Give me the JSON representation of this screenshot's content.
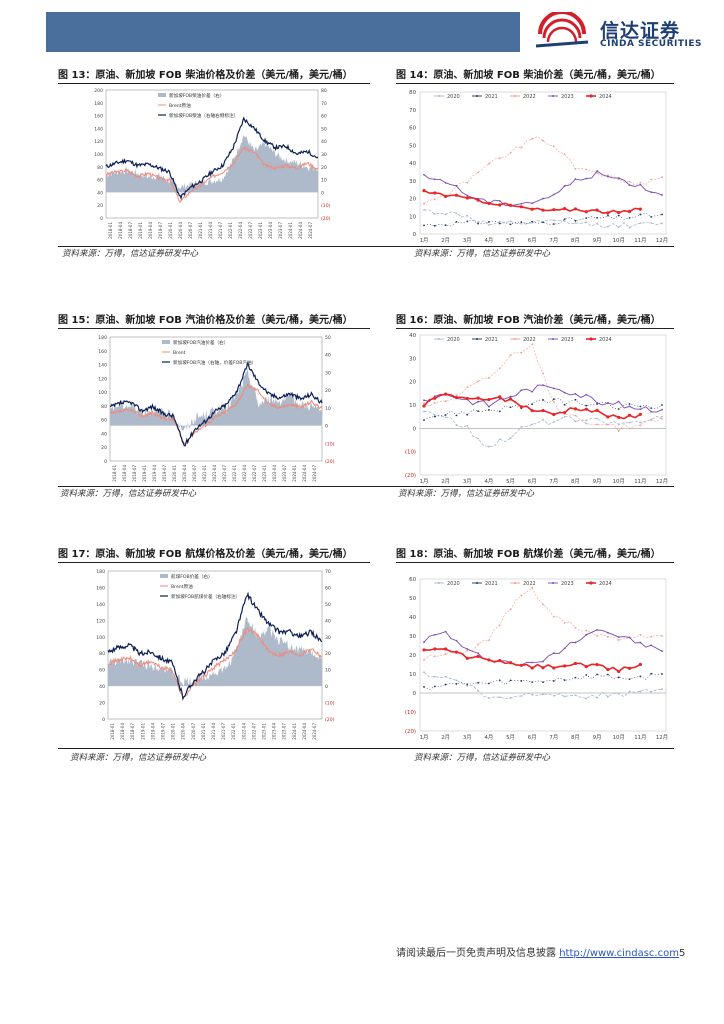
{
  "header": {
    "logo_cn": "信达证券",
    "logo_en": "CINDA SECURITIES"
  },
  "colors": {
    "banner": "#4a6f9c",
    "navy": "#0d1f55",
    "salmon": "#f08a7a",
    "gray_area": "#aeb9c9",
    "c2020": "#a8b8d0",
    "c2021": "#1f3560",
    "c2022": "#f59a8c",
    "c2023": "#7b4bb0",
    "c2024": "#e8262a"
  },
  "figures": [
    {
      "title": "图 13：原油、新加坡 FOB 柴油价格及价差（美元/桶，美元/桶）",
      "source": "资料来源：万得，信达证券研发中心",
      "chart_data": {
        "type": "line",
        "legend": [
          "新加坡FOB柴油价差（右）",
          "Brent原油",
          "新加坡FOB柴油（右轴右侧标注）"
        ],
        "y_left_ticks": [
          "200",
          "180",
          "160",
          "140",
          "120",
          "100",
          "80",
          "60",
          "40",
          "20",
          "0"
        ],
        "y_right_ticks": [
          "80",
          "70",
          "60",
          "50",
          "40",
          "30",
          "20",
          "10",
          "0",
          "(10)",
          "(20)"
        ],
        "x_ticks": [
          "2018-01",
          "2018-04",
          "2018-07",
          "2019-01",
          "2019-04",
          "2019-07",
          "2020-01",
          "2020-04",
          "2020-07",
          "2021-01",
          "2021-04",
          "2021-07",
          "2022-01",
          "2022-04",
          "2022-07",
          "2023-01",
          "2023-04",
          "2023-07",
          "2024-01",
          "2024-04",
          "2024-07"
        ],
        "ylim_left": [
          0,
          200
        ],
        "ylim_right": [
          -20,
          80
        ],
        "series": [
          {
            "name": "柴油价差",
            "values": [
              14,
              16,
              17,
              15,
              12,
              13,
              9,
              4,
              6,
              8,
              9,
              11,
              25,
              45,
              32,
              38,
              30,
              25,
              23,
              20,
              19
            ]
          },
          {
            "name": "Brent",
            "values": [
              68,
              72,
              74,
              65,
              70,
              62,
              60,
              25,
              42,
              52,
              64,
              72,
              85,
              110,
              102,
              82,
              78,
              82,
              78,
              86,
              76
            ]
          },
          {
            "name": "新加坡柴油",
            "values": [
              80,
              86,
              90,
              82,
              84,
              78,
              72,
              32,
              48,
              58,
              72,
              82,
              110,
              155,
              140,
              120,
              110,
              112,
              100,
              104,
              94
            ]
          }
        ]
      }
    },
    {
      "title": "图 14：原油、新加坡 FOB 柴油价差（美元/桶，美元/桶）",
      "source": "资料来源：万得，信达证券研发中心",
      "chart_data": {
        "type": "line",
        "categories": [
          "1月",
          "2月",
          "3月",
          "4月",
          "5月",
          "6月",
          "7月",
          "8月",
          "9月",
          "10月",
          "11月",
          "12月"
        ],
        "y_ticks": [
          "80",
          "70",
          "60",
          "50",
          "40",
          "30",
          "20",
          "10",
          "0"
        ],
        "ylim": [
          0,
          80
        ],
        "series": [
          {
            "name": "2020",
            "values": [
              13,
              12,
              10,
              5,
              6,
              6,
              7,
              6,
              5,
              5,
              5,
              6
            ]
          },
          {
            "name": "2021",
            "values": [
              5,
              6,
              6,
              7,
              6,
              6,
              7,
              8,
              9,
              9,
              10,
              11
            ]
          },
          {
            "name": "2022",
            "values": [
              18,
              22,
              30,
              40,
              45,
              55,
              50,
              38,
              35,
              30,
              28,
              32
            ]
          },
          {
            "name": "2023",
            "values": [
              32,
              30,
              22,
              18,
              17,
              18,
              22,
              30,
              34,
              31,
              27,
              22
            ]
          },
          {
            "name": "2024",
            "values": [
              24,
              22,
              20,
              18,
              16,
              14,
              13,
              14,
              13,
              12,
              14,
              null
            ]
          }
        ]
      }
    },
    {
      "title": "图 15：原油、新加坡 FOB 汽油价格及价差（美元/桶，美元/桶）",
      "source": "资料来源：万得，信达证券研发中心",
      "chart_data": {
        "type": "line",
        "legend": [
          "新加坡FOB汽油价差（右）",
          "Brent",
          "新加坡FOB汽油（右轴，价差FOB汽油）"
        ],
        "y_left_ticks": [
          "180",
          "160",
          "140",
          "120",
          "100",
          "80",
          "60",
          "40",
          "20",
          "0"
        ],
        "y_right_ticks": [
          "50",
          "40",
          "30",
          "20",
          "10",
          "0",
          "(10)",
          "(20)"
        ],
        "x_ticks": [
          "2018-01",
          "2018-04",
          "2018-07",
          "2019-01",
          "2019-04",
          "2019-07",
          "2020-01",
          "2020-04",
          "2020-07",
          "2021-01",
          "2021-04",
          "2021-07",
          "2022-01",
          "2022-04",
          "2022-07",
          "2023-01",
          "2023-04",
          "2023-07",
          "2024-01",
          "2024-04",
          "2024-07"
        ],
        "ylim_left": [
          0,
          180
        ],
        "ylim_right": [
          -20,
          50
        ],
        "series": [
          {
            "name": "汽油价差",
            "values": [
              10,
              12,
              11,
              8,
              9,
              7,
              5,
              -3,
              4,
              6,
              9,
              10,
              18,
              30,
              12,
              15,
              14,
              16,
              12,
              11,
              8
            ]
          },
          {
            "name": "Brent",
            "values": [
              68,
              72,
              74,
              65,
              70,
              62,
              60,
              25,
              42,
              52,
              64,
              72,
              85,
              110,
              102,
              82,
              78,
              82,
              78,
              86,
              76
            ]
          },
          {
            "name": "新加坡汽油",
            "values": [
              78,
              84,
              85,
              73,
              79,
              69,
              65,
              22,
              46,
              58,
              73,
              82,
              103,
              140,
              114,
              97,
              92,
              98,
              90,
              97,
              84
            ]
          }
        ]
      }
    },
    {
      "title": "图 16：原油、新加坡 FOB 汽油价差（美元/桶，美元/桶）",
      "source": "资料来源：万得，信达证券研发中心",
      "chart_data": {
        "type": "line",
        "categories": [
          "1月",
          "2月",
          "3月",
          "4月",
          "5月",
          "6月",
          "7月",
          "8月",
          "9月",
          "10月",
          "11月",
          "12月"
        ],
        "y_ticks": [
          "40",
          "30",
          "20",
          "10",
          "0",
          "(10)",
          "(20)"
        ],
        "ylim": [
          -20,
          40
        ],
        "series": [
          {
            "name": "2020",
            "values": [
              8,
              5,
              0,
              -8,
              -3,
              2,
              3,
              4,
              3,
              2,
              3,
              4
            ]
          },
          {
            "name": "2021",
            "values": [
              5,
              6,
              7,
              8,
              9,
              10,
              12,
              11,
              10,
              9,
              10,
              10
            ]
          },
          {
            "name": "2022",
            "values": [
              10,
              12,
              18,
              22,
              30,
              35,
              10,
              5,
              2,
              0,
              2,
              5
            ]
          },
          {
            "name": "2023",
            "values": [
              12,
              15,
              12,
              10,
              14,
              17,
              18,
              15,
              12,
              10,
              9,
              8
            ]
          },
          {
            "name": "2024",
            "values": [
              10,
              15,
              12,
              13,
              12,
              8,
              6,
              9,
              7,
              4,
              6,
              null
            ]
          }
        ]
      }
    },
    {
      "title": "图 17：原油、新加坡 FOB 航煤价格及价差（美元/桶，美元/桶）",
      "source": "资料来源：万得，信达证券研发中心",
      "chart_data": {
        "type": "line",
        "legend": [
          "航煤FOB价差（右）",
          "Brent原油",
          "新加坡FOB航煤价差（右轴标注）"
        ],
        "y_left_ticks": [
          "180",
          "160",
          "140",
          "120",
          "100",
          "80",
          "60",
          "40",
          "20",
          "0"
        ],
        "y_right_ticks": [
          "70",
          "60",
          "50",
          "40",
          "30",
          "20",
          "10",
          "0",
          "(10)",
          "(20)"
        ],
        "x_ticks": [
          "2018-01",
          "2018-04",
          "2018-07",
          "2019-01",
          "2019-04",
          "2019-07",
          "2020-01",
          "2020-04",
          "2020-07",
          "2021-01",
          "2021-04",
          "2021-07",
          "2022-01",
          "2022-04",
          "2022-07",
          "2023-01",
          "2023-04",
          "2023-07",
          "2024-01",
          "2024-04",
          "2024-07"
        ],
        "ylim_left": [
          0,
          180
        ],
        "ylim_right": [
          -20,
          70
        ],
        "series": [
          {
            "name": "航煤价差",
            "values": [
              14,
              15,
              16,
              14,
              12,
              12,
              8,
              2,
              4,
              6,
              8,
              10,
              22,
              42,
              30,
              34,
              28,
              24,
              22,
              20,
              18
            ]
          },
          {
            "name": "Brent",
            "values": [
              68,
              72,
              74,
              65,
              70,
              62,
              60,
              25,
              42,
              52,
              64,
              72,
              85,
              110,
              102,
              82,
              78,
              82,
              78,
              86,
              76
            ]
          },
          {
            "name": "新加坡航煤",
            "values": [
              82,
              87,
              90,
              79,
              82,
              74,
              68,
              27,
              46,
              58,
              72,
              82,
              107,
              152,
              132,
              116,
              106,
              106,
              100,
              106,
              94
            ]
          }
        ]
      }
    },
    {
      "title": "图 18：原油、新加坡 FOB 航煤价差（美元/桶，美元/桶）",
      "source": "资料来源：万得，信达证券研发中心",
      "chart_data": {
        "type": "line",
        "categories": [
          "1月",
          "2月",
          "3月",
          "4月",
          "5月",
          "6月",
          "7月",
          "8月",
          "9月",
          "10月",
          "11月",
          "12月"
        ],
        "y_ticks": [
          "60",
          "50",
          "40",
          "30",
          "20",
          "10",
          "0",
          "(10)",
          "(20)"
        ],
        "ylim": [
          -20,
          60
        ],
        "series": [
          {
            "name": "2020",
            "values": [
              10,
              8,
              5,
              -3,
              -2,
              0,
              0,
              -2,
              -1,
              -1,
              0,
              2
            ]
          },
          {
            "name": "2021",
            "values": [
              3,
              4,
              5,
              5,
              6,
              6,
              7,
              8,
              9,
              8,
              8,
              10
            ]
          },
          {
            "name": "2022",
            "values": [
              18,
              20,
              22,
              28,
              45,
              55,
              40,
              35,
              30,
              28,
              30,
              30
            ]
          },
          {
            "name": "2023",
            "values": [
              28,
              32,
              22,
              18,
              16,
              15,
              20,
              28,
              34,
              30,
              26,
              22
            ]
          },
          {
            "name": "2024",
            "values": [
              22,
              23,
              19,
              18,
              15,
              14,
              14,
              15,
              14,
              12,
              15,
              null
            ]
          }
        ]
      }
    }
  ],
  "footer": {
    "text": "请阅读最后一页免责声明及信息披露 ",
    "link": "http://www.cindasc.com",
    "page": "5"
  }
}
